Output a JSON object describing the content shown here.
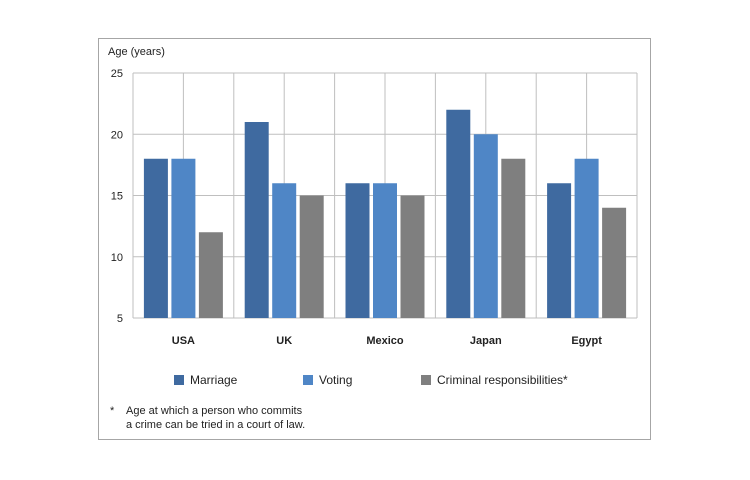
{
  "chart_data": {
    "type": "bar",
    "ylabel": "Age (years)",
    "ylim": [
      5,
      25
    ],
    "yticks": [
      5,
      10,
      15,
      20,
      25
    ],
    "grid": true,
    "legend_position": "bottom",
    "categories": [
      "USA",
      "UK",
      "Mexico",
      "Japan",
      "Egypt"
    ],
    "series": [
      {
        "name": "Marriage",
        "color": "#3f6aa0",
        "values": [
          18,
          21,
          16,
          22,
          16
        ]
      },
      {
        "name": "Voting",
        "color": "#4f86c6",
        "values": [
          18,
          16,
          16,
          20,
          18
        ]
      },
      {
        "name": "Criminal responsibilities*",
        "color": "#7f7f7f",
        "values": [
          12,
          15,
          15,
          18,
          14
        ]
      }
    ]
  },
  "footnote": {
    "marker": "*",
    "line1": "Age at which a person who commits",
    "line2": "a crime can be tried in a court of law."
  }
}
